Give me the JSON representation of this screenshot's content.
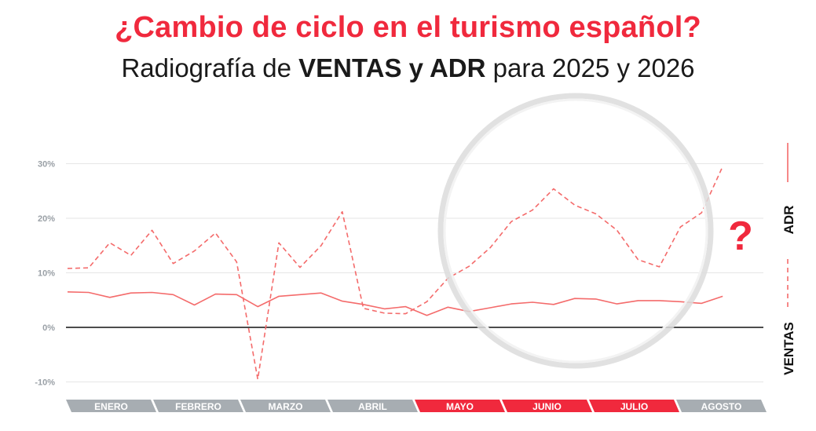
{
  "title": "¿Cambio de ciclo en el turismo español?",
  "subtitle": {
    "part1": "Radiografía de ",
    "bold": "VENTAS y ADR",
    "part2": " para 2025 y 2026"
  },
  "annotation": "?",
  "colors": {
    "accent": "#f0293d",
    "line": "#f46b6b",
    "month_inactive": "#a7adb2",
    "month_active": "#f0293d",
    "grid": "#e6e6e6",
    "zero_line": "#111111"
  },
  "chart_data": {
    "type": "line",
    "ylim": [
      -12,
      33
    ],
    "yticks": [
      -10,
      0,
      10,
      20,
      30
    ],
    "ytick_labels": [
      "-10%",
      "0%",
      "10%",
      "20%",
      "30%"
    ],
    "grid": true,
    "legend_position": "right",
    "legend": [
      {
        "label": "ADR",
        "style": "solid"
      },
      {
        "label": "VENTAS",
        "style": "dashed"
      }
    ],
    "months": [
      {
        "label": "ENERO",
        "active": false
      },
      {
        "label": "FEBRERO",
        "active": false
      },
      {
        "label": "MARZO",
        "active": false
      },
      {
        "label": "ABRIL",
        "active": false
      },
      {
        "label": "MAYO",
        "active": true
      },
      {
        "label": "JUNIO",
        "active": true
      },
      {
        "label": "JULIO",
        "active": true
      },
      {
        "label": "AGOSTO",
        "active": false
      }
    ],
    "x_periods": 33,
    "series": [
      {
        "key": "adr",
        "style": "solid",
        "values": [
          6.5,
          6.4,
          5.5,
          6.3,
          6.4,
          6.0,
          4.1,
          6.1,
          6.0,
          3.8,
          5.7,
          6.0,
          6.3,
          4.8,
          4.2,
          3.4,
          3.8,
          2.2,
          3.7,
          2.9,
          3.6,
          4.3,
          4.6,
          4.2,
          5.3,
          5.2,
          4.3,
          4.9,
          4.9,
          4.7,
          4.4,
          5.7
        ]
      },
      {
        "key": "ventas",
        "style": "dashed",
        "values": [
          10.8,
          10.9,
          15.5,
          13.2,
          17.8,
          11.7,
          14.0,
          17.3,
          12.0,
          -9.5,
          15.5,
          11.0,
          15.0,
          21.2,
          3.5,
          2.6,
          2.5,
          4.7,
          9.0,
          11.2,
          14.6,
          19.4,
          21.5,
          25.4,
          22.4,
          20.8,
          17.8,
          12.4,
          11.1,
          18.4,
          21.0,
          29.5
        ]
      }
    ]
  }
}
